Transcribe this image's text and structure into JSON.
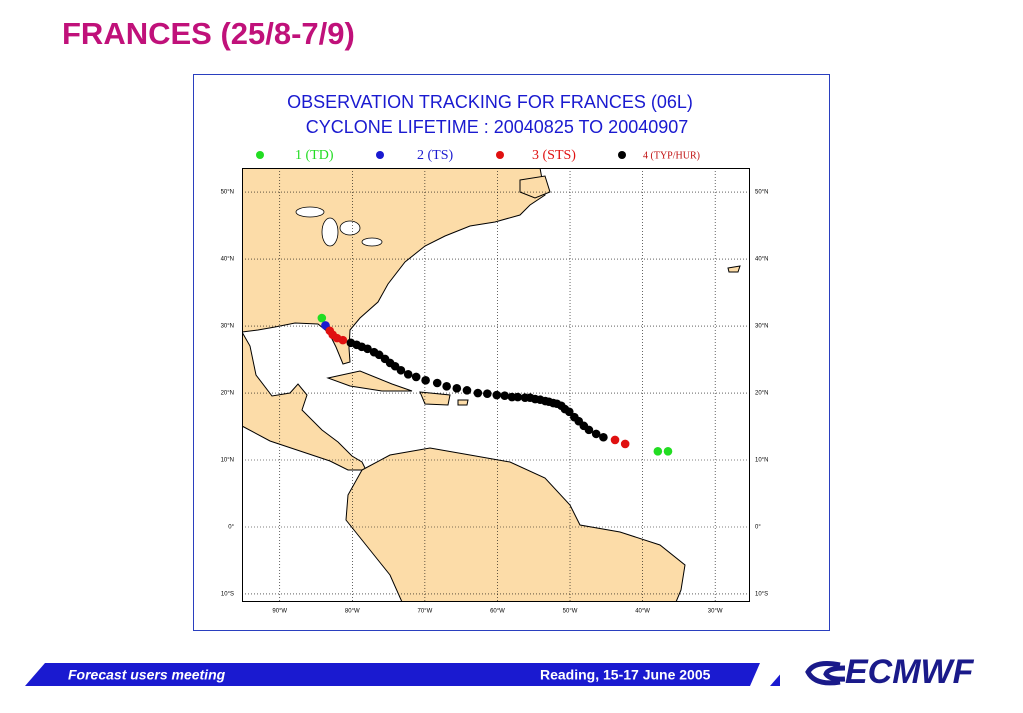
{
  "header": {
    "title": "FRANCES (25/8-7/9)"
  },
  "chart_data": {
    "type": "track-map",
    "title": [
      "OBSERVATION TRACKING FOR FRANCES (06L)",
      "CYCLONE LIFETIME : 20040825 TO 20040907"
    ],
    "xlim": [
      -95.2,
      -25.2
    ],
    "ylim": [
      -11.2,
      53.6
    ],
    "xticks": [
      {
        "value": -90,
        "label": "90°W"
      },
      {
        "value": -80,
        "label": "80°W"
      },
      {
        "value": -70,
        "label": "70°W"
      },
      {
        "value": -60,
        "label": "60°W"
      },
      {
        "value": -50,
        "label": "50°W"
      },
      {
        "value": -40,
        "label": "40°W"
      },
      {
        "value": -30,
        "label": "30°W"
      }
    ],
    "yticks": [
      {
        "value": 50,
        "label": "50°N"
      },
      {
        "value": 40,
        "label": "40°N"
      },
      {
        "value": 30,
        "label": "30°N"
      },
      {
        "value": 20,
        "label": "20°N"
      },
      {
        "value": 10,
        "label": "10°N"
      },
      {
        "value": 0,
        "label": "0°"
      },
      {
        "value": -10,
        "label": "10°S"
      }
    ],
    "grid": true,
    "series": [
      {
        "name": "1 (TD)",
        "color": "#22dd22",
        "x": [
          -37.9,
          -36.5,
          -84.2
        ],
        "y": [
          11.3,
          11.3,
          31.2
        ]
      },
      {
        "name": "2 (TS)",
        "color": "#1a1ad0",
        "x": [
          -83.7
        ],
        "y": [
          30.1
        ]
      },
      {
        "name": "3 (STS)",
        "color": "#e01010",
        "x": [
          -43.8,
          -42.4,
          -81.3,
          -82.1,
          -82.7,
          -83.1
        ],
        "y": [
          13.0,
          12.4,
          27.9,
          28.2,
          28.7,
          29.3
        ]
      },
      {
        "name": "4 (TYP/HUR)",
        "color": "#000000",
        "x": [
          -45.4,
          -46.4,
          -47.4,
          -48.1,
          -48.8,
          -49.4,
          -50.1,
          -50.7,
          -51.2,
          -51.8,
          -52.3,
          -52.9,
          -53.4,
          -54.1,
          -54.8,
          -55.5,
          -56.2,
          -57.2,
          -58.0,
          -59.0,
          -60.1,
          -61.4,
          -62.7,
          -64.2,
          -65.6,
          -67.0,
          -68.3,
          -69.9,
          -71.2,
          -72.3,
          -73.3,
          -74.1,
          -74.8,
          -75.5,
          -76.3,
          -77.0,
          -77.9,
          -78.7,
          -79.4,
          -80.2
        ],
        "y": [
          13.4,
          13.9,
          14.5,
          15.1,
          15.8,
          16.4,
          17.2,
          17.6,
          18.1,
          18.4,
          18.5,
          18.7,
          18.8,
          19.0,
          19.1,
          19.3,
          19.3,
          19.4,
          19.4,
          19.6,
          19.7,
          19.9,
          20.0,
          20.4,
          20.7,
          21.0,
          21.5,
          21.9,
          22.4,
          22.8,
          23.4,
          24.0,
          24.5,
          25.1,
          25.7,
          26.1,
          26.6,
          26.9,
          27.2,
          27.5
        ]
      }
    ]
  },
  "footer": {
    "left": "Forecast users meeting",
    "right": "Reading, 15-17 June 2005",
    "logo": "ECMWF"
  }
}
